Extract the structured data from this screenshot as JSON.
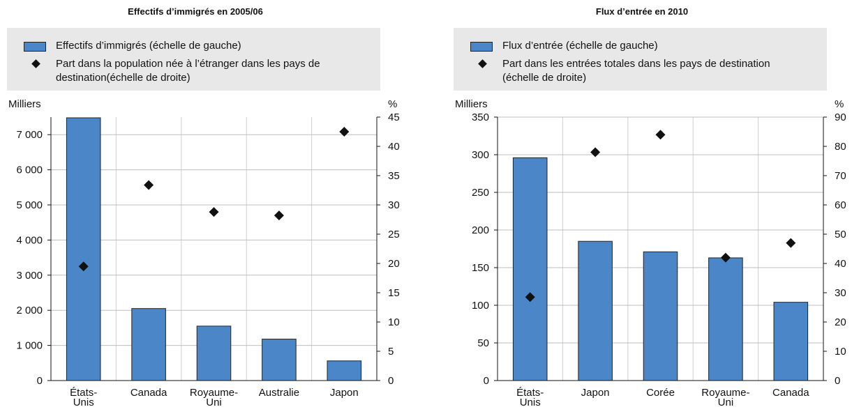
{
  "chart_data": [
    {
      "type": "bar",
      "title": "Effectifs d’immigrés en 2005/06",
      "categories": [
        "États-Unis",
        "Canada",
        "Royaume-Uni",
        "Australie",
        "Japon"
      ],
      "series": [
        {
          "name": "Effectifs d’immigrés (échelle de gauche)",
          "color": "#4a86c8",
          "values": [
            7480,
            2050,
            1550,
            1180,
            560
          ]
        },
        {
          "name": "Part dans la population née à l’étranger dans les pays de destination(échelle de droite)",
          "color": "#111111",
          "axis": "y2",
          "values": [
            19.5,
            33.4,
            28.8,
            28.2,
            42.5
          ]
        }
      ],
      "ylabel": "Milliers",
      "y2label": "%",
      "ylim": [
        0,
        7500
      ],
      "yticks": [
        0,
        {
          "value": 1000,
          "label": "1 000"
        },
        {
          "value": 2000,
          "label": "2 000"
        },
        {
          "value": 3000,
          "label": "3 000"
        },
        {
          "value": 4000,
          "label": "4 000"
        },
        {
          "value": 5000,
          "label": "5 000"
        },
        {
          "value": 6000,
          "label": "6 000"
        },
        {
          "value": 7000,
          "label": "7 000"
        }
      ],
      "y2lim": [
        0,
        45
      ],
      "y2ticks": [
        0,
        5,
        10,
        15,
        20,
        25,
        30,
        35,
        40,
        45
      ],
      "grid": true
    },
    {
      "type": "bar",
      "title": "Flux d’entrée en 2010",
      "categories": [
        "États-Unis",
        "Japon",
        "Corée",
        "Royaume-Uni",
        "Canada"
      ],
      "series": [
        {
          "name": "Flux d’entrée (échelle de gauche)",
          "color": "#4a86c8",
          "values": [
            296,
            185,
            171,
            163,
            104
          ]
        },
        {
          "name": "Part dans les entrées totales dans les pays de destination (échelle de droite)",
          "color": "#111111",
          "axis": "y2",
          "values": [
            28.5,
            78,
            84,
            42,
            47
          ]
        }
      ],
      "ylabel": "Milliers",
      "y2label": "%",
      "ylim": [
        0,
        350
      ],
      "yticks": [
        0,
        50,
        100,
        150,
        200,
        250,
        300,
        350
      ],
      "y2lim": [
        0,
        90
      ],
      "y2ticks": [
        0,
        10,
        20,
        30,
        40,
        50,
        60,
        70,
        80,
        90
      ],
      "grid": true
    }
  ]
}
